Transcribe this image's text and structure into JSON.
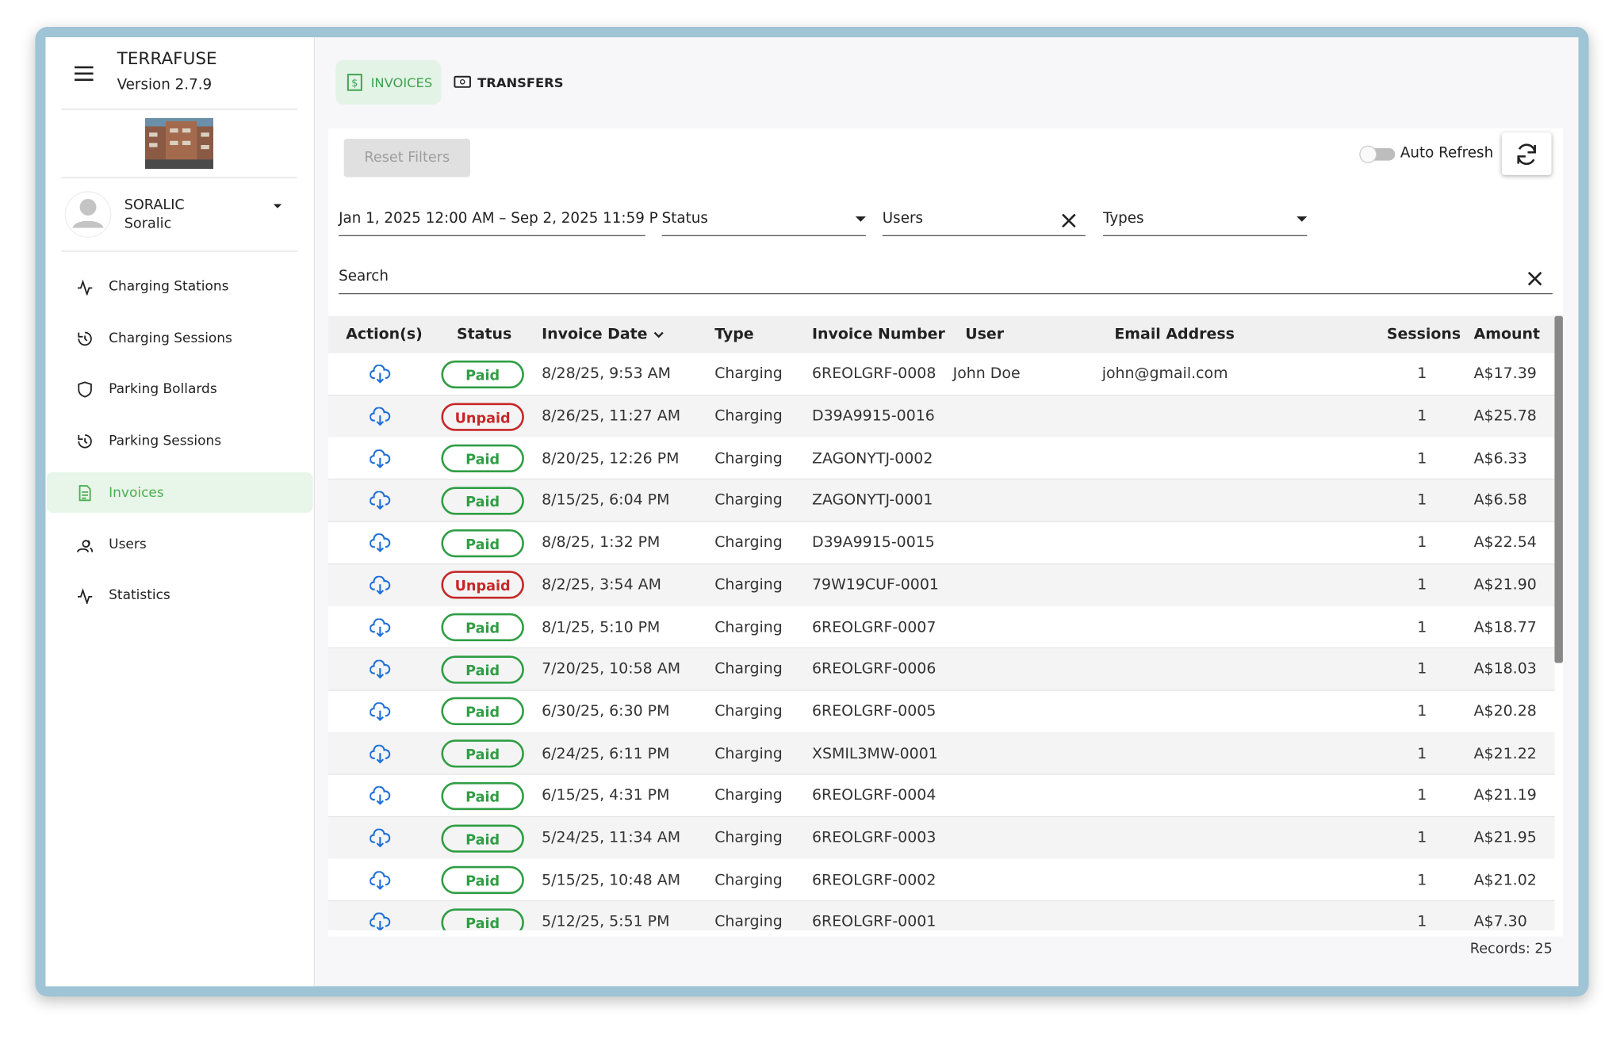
{
  "sidebar": {
    "app_name": "TERRAFUSE",
    "version": "Version 2.7.9",
    "user_name": "SORALIC",
    "user_org": "Soralic",
    "nav": [
      "Charging Stations",
      "Charging Sessions",
      "Parking Bollards",
      "Parking Sessions",
      "Invoices",
      "Users",
      "Statistics"
    ],
    "active": 4
  },
  "tabs": [
    "INVOICES",
    "TRANSFERS"
  ],
  "toolbar": {
    "reset": "Reset Filters",
    "auto_refresh": "Auto Refresh"
  },
  "filters": {
    "date_range": "Jan 1, 2025 12:00 AM – Sep 2, 2025 11:59 P",
    "status": "Status",
    "users": "Users",
    "types": "Types",
    "search": "Search"
  },
  "table": {
    "columns": [
      "Action(s)",
      "Status",
      "Invoice Date",
      "Type",
      "Invoice Number",
      "User",
      "Email Address",
      "Sessions",
      "Amount"
    ],
    "rows": [
      {
        "status": "Paid",
        "status_color": "#2f9e44",
        "date": "8/28/25, 9:53 AM",
        "type": "Charging",
        "number": "6REOLGRF-0008",
        "user": "John Doe",
        "email": "john@gmail.com",
        "sessions": "1",
        "amount": "A$17.39"
      },
      {
        "status": "Unpaid",
        "status_color": "#c62828",
        "date": "8/26/25, 11:27 AM",
        "type": "Charging",
        "number": "D39A9915-0016",
        "sessions": "1",
        "amount": "A$25.78"
      },
      {
        "status": "Paid",
        "status_color": "#2f9e44",
        "date": "8/20/25, 12:26 PM",
        "type": "Charging",
        "number": "ZAGONYTJ-0002",
        "sessions": "1",
        "amount": "A$6.33"
      },
      {
        "status": "Paid",
        "status_color": "#2f9e44",
        "date": "8/15/25, 6:04 PM",
        "type": "Charging",
        "number": "ZAGONYTJ-0001",
        "sessions": "1",
        "amount": "A$6.58"
      },
      {
        "status": "Paid",
        "status_color": "#2f9e44",
        "date": "8/8/25, 1:32 PM",
        "type": "Charging",
        "number": "D39A9915-0015",
        "sessions": "1",
        "amount": "A$22.54"
      },
      {
        "status": "Unpaid",
        "status_color": "#c62828",
        "date": "8/2/25, 3:54 AM",
        "type": "Charging",
        "number": "79W19CUF-0001",
        "sessions": "1",
        "amount": "A$21.90"
      },
      {
        "status": "Paid",
        "status_color": "#2f9e44",
        "date": "8/1/25, 5:10 PM",
        "type": "Charging",
        "number": "6REOLGRF-0007",
        "sessions": "1",
        "amount": "A$18.77"
      },
      {
        "status": "Paid",
        "status_color": "#2f9e44",
        "date": "7/20/25, 10:58 AM",
        "type": "Charging",
        "number": "6REOLGRF-0006",
        "sessions": "1",
        "amount": "A$18.03"
      },
      {
        "status": "Paid",
        "status_color": "#2f9e44",
        "date": "6/30/25, 6:30 PM",
        "type": "Charging",
        "number": "6REOLGRF-0005",
        "sessions": "1",
        "amount": "A$20.28"
      },
      {
        "status": "Paid",
        "status_color": "#2f9e44",
        "date": "6/24/25, 6:11 PM",
        "type": "Charging",
        "number": "XSMIL3MW-0001",
        "sessions": "1",
        "amount": "A$21.22"
      },
      {
        "status": "Paid",
        "status_color": "#2f9e44",
        "date": "6/15/25, 4:31 PM",
        "type": "Charging",
        "number": "6REOLGRF-0004",
        "sessions": "1",
        "amount": "A$21.19"
      },
      {
        "status": "Paid",
        "status_color": "#2f9e44",
        "date": "5/24/25, 11:34 AM",
        "type": "Charging",
        "number": "6REOLGRF-0003",
        "sessions": "1",
        "amount": "A$21.95"
      },
      {
        "status": "Paid",
        "status_color": "#2f9e44",
        "date": "5/15/25, 10:48 AM",
        "type": "Charging",
        "number": "6REOLGRF-0002",
        "sessions": "1",
        "amount": "A$21.02"
      },
      {
        "status": "Paid",
        "status_color": "#2f9e44",
        "date": "5/12/25, 5:51 PM",
        "type": "Charging",
        "number": "6REOLGRF-0001",
        "sessions": "1",
        "amount": "A$7.30"
      }
    ]
  },
  "footer": {
    "records": "Records: 25"
  }
}
